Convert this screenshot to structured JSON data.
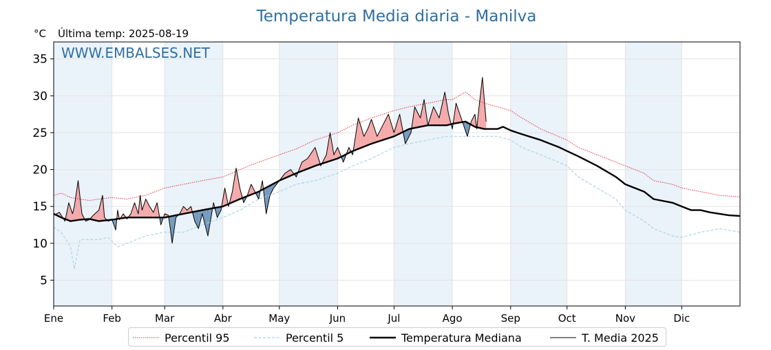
{
  "title": "Temperatura Media diaria - Manilva",
  "unit_label": "°C",
  "last_temp_label": "Última temp: 2025-08-19",
  "watermark": "WWW.EMBALSES.NET",
  "colors": {
    "title": "#2f6f9f",
    "p95": "#e8303a",
    "p5": "#a9d4e2",
    "median": "#000000",
    "current": "#000000",
    "above_fill": "#f4a6a6",
    "below_fill": "#6f96bb",
    "month_band": "#eaf2fa"
  },
  "legend": [
    {
      "key": "p95",
      "label": "Percentil 95"
    },
    {
      "key": "p5",
      "label": "Percentil 5"
    },
    {
      "key": "median",
      "label": "Temperatura Mediana"
    },
    {
      "key": "current",
      "label": "T. Media 2025"
    }
  ],
  "chart_data": {
    "type": "line",
    "title": "Temperatura Media diaria - Manilva",
    "ylabel": "°C",
    "ylim": [
      1.5,
      37.3
    ],
    "xlim": [
      1,
      366
    ],
    "yticks": [
      5,
      10,
      15,
      20,
      25,
      30,
      35
    ],
    "grid": true,
    "legend_position": "bottom",
    "months": [
      {
        "label": "Ene",
        "start_day": 1
      },
      {
        "label": "Feb",
        "start_day": 32
      },
      {
        "label": "Mar",
        "start_day": 60
      },
      {
        "label": "Abr",
        "start_day": 91
      },
      {
        "label": "May",
        "start_day": 121
      },
      {
        "label": "Jun",
        "start_day": 152
      },
      {
        "label": "Jul",
        "start_day": 182
      },
      {
        "label": "Ago",
        "start_day": 213
      },
      {
        "label": "Sep",
        "start_day": 244
      },
      {
        "label": "Oct",
        "start_day": 274
      },
      {
        "label": "Nov",
        "start_day": 305
      },
      {
        "label": "Dic",
        "start_day": 335
      }
    ],
    "series": [
      {
        "name": "Percentil 95",
        "key": "p95",
        "style": "dotted",
        "x": [
          1,
          5,
          10,
          15,
          20,
          25,
          32,
          40,
          50,
          60,
          70,
          80,
          91,
          100,
          110,
          121,
          130,
          140,
          152,
          160,
          170,
          182,
          190,
          200,
          210,
          213,
          220,
          225,
          230,
          237,
          244,
          250,
          260,
          274,
          280,
          290,
          300,
          305,
          315,
          320,
          330,
          335,
          345,
          355,
          366
        ],
        "y": [
          16.5,
          16.8,
          16.2,
          16.0,
          15.8,
          16.0,
          16.2,
          16.0,
          16.5,
          17.5,
          18.0,
          18.5,
          19.0,
          20.0,
          21.0,
          22.0,
          22.8,
          24.0,
          25.0,
          26.0,
          27.0,
          28.0,
          28.5,
          29.0,
          29.5,
          29.5,
          30.5,
          29.5,
          29.0,
          28.5,
          28.0,
          27.0,
          25.5,
          24.0,
          23.0,
          22.0,
          21.0,
          20.5,
          19.5,
          18.5,
          18.0,
          17.5,
          17.0,
          16.5,
          16.3
        ]
      },
      {
        "name": "Percentil 5",
        "key": "p5",
        "style": "dashed",
        "x": [
          1,
          5,
          10,
          12,
          15,
          20,
          25,
          30,
          35,
          40,
          50,
          60,
          70,
          80,
          91,
          100,
          110,
          121,
          130,
          140,
          152,
          160,
          170,
          182,
          190,
          200,
          210,
          220,
          230,
          237,
          244,
          250,
          260,
          274,
          280,
          290,
          300,
          305,
          315,
          320,
          330,
          335,
          345,
          355,
          366
        ],
        "y": [
          12.2,
          11.5,
          9.5,
          6.5,
          10.5,
          10.5,
          10.5,
          10.8,
          9.5,
          10.0,
          11.0,
          11.5,
          11.5,
          12.5,
          13.5,
          14.5,
          16.0,
          17.0,
          18.0,
          18.5,
          19.5,
          20.5,
          21.5,
          23.0,
          23.5,
          24.0,
          24.5,
          24.5,
          24.5,
          24.5,
          24.0,
          23.0,
          22.0,
          20.5,
          19.0,
          17.5,
          16.0,
          14.5,
          13.0,
          12.0,
          11.0,
          10.8,
          11.5,
          12.0,
          11.5
        ]
      },
      {
        "name": "Temperatura Mediana",
        "key": "median",
        "style": "solid-thick",
        "x": [
          1,
          5,
          10,
          15,
          20,
          25,
          32,
          40,
          50,
          60,
          70,
          80,
          91,
          100,
          110,
          121,
          130,
          140,
          152,
          160,
          170,
          182,
          190,
          200,
          210,
          213,
          220,
          225,
          230,
          237,
          240,
          244,
          250,
          260,
          270,
          274,
          280,
          290,
          300,
          305,
          310,
          315,
          320,
          330,
          335,
          340,
          345,
          350,
          355,
          360,
          366
        ],
        "y": [
          14.0,
          13.5,
          13.0,
          13.2,
          13.3,
          13.0,
          13.2,
          13.5,
          13.5,
          13.5,
          14.0,
          14.5,
          15.0,
          16.0,
          17.0,
          18.5,
          19.5,
          20.5,
          21.5,
          22.5,
          23.5,
          24.5,
          25.5,
          26.0,
          26.0,
          26.2,
          26.5,
          25.8,
          25.5,
          25.5,
          25.8,
          25.3,
          24.8,
          24.0,
          23.0,
          22.5,
          21.8,
          20.5,
          19.0,
          18.0,
          17.5,
          17.0,
          16.0,
          15.5,
          15.0,
          14.5,
          14.5,
          14.2,
          14.0,
          13.8,
          13.7
        ]
      },
      {
        "name": "T. Media 2025",
        "key": "current",
        "style": "solid-thin",
        "x": [
          1,
          4,
          7,
          9,
          11,
          12,
          14,
          16,
          18,
          20,
          22,
          25,
          27,
          28,
          30,
          32,
          34,
          35,
          36,
          38,
          40,
          42,
          44,
          46,
          47,
          48,
          50,
          52,
          54,
          56,
          58,
          60,
          62,
          63,
          64,
          66,
          68,
          70,
          72,
          74,
          76,
          78,
          80,
          83,
          86,
          88,
          90,
          92,
          94,
          96,
          98,
          100,
          102,
          104,
          106,
          108,
          110,
          112,
          114,
          116,
          118,
          121,
          124,
          127,
          130,
          133,
          136,
          140,
          143,
          146,
          148,
          150,
          152,
          155,
          158,
          160,
          163,
          166,
          168,
          170,
          173,
          176,
          179,
          182,
          185,
          188,
          190,
          191,
          193,
          196,
          198,
          200,
          203,
          206,
          209,
          211,
          213,
          215,
          217,
          219,
          221,
          223,
          225,
          226,
          227,
          229,
          231
        ],
        "y": [
          13.8,
          14.2,
          13.0,
          15.5,
          14.0,
          15.0,
          18.5,
          14.0,
          13.0,
          13.2,
          13.8,
          14.5,
          16.5,
          13.5,
          13.0,
          13.2,
          11.8,
          14.5,
          13.2,
          14.0,
          13.3,
          14.0,
          15.5,
          14.0,
          16.5,
          14.5,
          16.0,
          15.0,
          14.2,
          15.5,
          12.5,
          14.0,
          13.8,
          12.0,
          10.0,
          13.5,
          14.0,
          15.0,
          14.5,
          15.0,
          13.0,
          12.0,
          14.0,
          11.0,
          15.5,
          13.5,
          14.5,
          17.5,
          15.0,
          17.0,
          20.2,
          17.5,
          15.5,
          16.5,
          18.0,
          17.0,
          16.0,
          18.5,
          14.0,
          16.5,
          17.5,
          18.5,
          19.5,
          20.0,
          19.0,
          21.0,
          21.5,
          23.0,
          20.5,
          22.0,
          25.0,
          22.0,
          23.0,
          21.0,
          23.0,
          22.0,
          27.0,
          24.5,
          25.5,
          26.8,
          24.5,
          26.0,
          27.5,
          25.0,
          27.5,
          23.5,
          24.5,
          25.0,
          28.5,
          27.0,
          29.5,
          26.0,
          28.5,
          27.0,
          30.5,
          27.5,
          25.5,
          29.0,
          27.5,
          26.0,
          24.5,
          26.5,
          27.5,
          25.5,
          28.0,
          32.5,
          26.5
        ]
      }
    ]
  }
}
